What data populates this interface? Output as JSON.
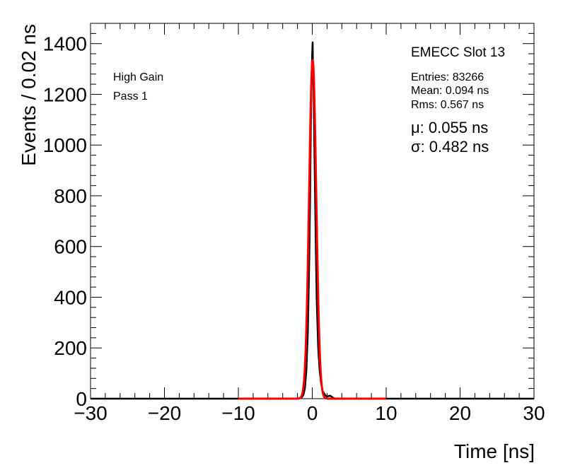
{
  "chart_data": {
    "type": "line",
    "xlabel": "Time [ns]",
    "ylabel": "Events / 0.02 ns",
    "xlim": [
      -30,
      30
    ],
    "ylim": [
      0,
      1480
    ],
    "x_ticks": [
      -30,
      -20,
      -10,
      0,
      10,
      20,
      30
    ],
    "x_tick_labels": [
      "−30",
      "−20",
      "−10",
      "0",
      "10",
      "20",
      "30"
    ],
    "y_ticks": [
      0,
      200,
      400,
      600,
      800,
      1000,
      1200,
      1400
    ],
    "y_tick_labels": [
      "0",
      "200",
      "400",
      "600",
      "800",
      "1000",
      "1200",
      "1400"
    ],
    "grid": false,
    "legend": "none",
    "colors": {
      "histogram": "#000000",
      "fit": "#ff0000"
    },
    "series": [
      {
        "kind": "histogram",
        "points": [
          [
            -30,
            0
          ],
          [
            -2.0,
            0
          ],
          [
            -1.6,
            2
          ],
          [
            -1.4,
            6
          ],
          [
            -1.2,
            15
          ],
          [
            -1.0,
            40
          ],
          [
            -0.8,
            110
          ],
          [
            -0.6,
            260
          ],
          [
            -0.4,
            560
          ],
          [
            -0.3,
            780
          ],
          [
            -0.2,
            1050
          ],
          [
            -0.1,
            1260
          ],
          [
            0.0,
            1370
          ],
          [
            0.05,
            1405
          ],
          [
            0.1,
            1300
          ],
          [
            0.2,
            1180
          ],
          [
            0.3,
            960
          ],
          [
            0.4,
            760
          ],
          [
            0.5,
            560
          ],
          [
            0.6,
            390
          ],
          [
            0.8,
            200
          ],
          [
            1.0,
            110
          ],
          [
            1.2,
            60
          ],
          [
            1.4,
            30
          ],
          [
            1.6,
            20
          ],
          [
            1.8,
            12
          ],
          [
            2.0,
            8
          ],
          [
            2.2,
            10
          ],
          [
            2.4,
            12
          ],
          [
            2.6,
            8
          ],
          [
            2.8,
            4
          ],
          [
            3.0,
            1
          ],
          [
            3.4,
            0
          ],
          [
            30,
            0
          ]
        ]
      },
      {
        "kind": "gaussian-fit",
        "mean": 0.055,
        "sigma": 0.482,
        "amplitude": 1335,
        "range": [
          -10,
          10
        ]
      }
    ],
    "annotations": {
      "left": [
        "High Gain",
        "Pass 1"
      ],
      "stats_title": "EMECC Slot 13",
      "stats": [
        "Entries: 83266",
        "Mean: 0.094 ns",
        "Rms: 0.567 ns"
      ],
      "fit_params": [
        "μ: 0.055 ns",
        "σ: 0.482 ns"
      ]
    }
  }
}
